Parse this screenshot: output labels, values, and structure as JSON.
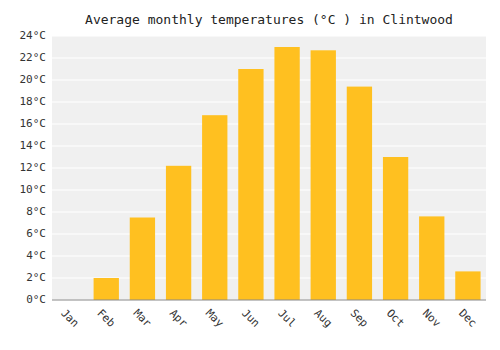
{
  "chart_data": {
    "type": "bar",
    "title": "Average monthly temperatures (°C ) in Clintwood",
    "categories": [
      "Jan",
      "Feb",
      "Mar",
      "Apr",
      "May",
      "Jun",
      "Jul",
      "Aug",
      "Sep",
      "Oct",
      "Nov",
      "Dec"
    ],
    "values": [
      0,
      2,
      7.5,
      12.2,
      16.8,
      21.0,
      23.0,
      22.7,
      19.4,
      13.0,
      7.6,
      2.6
    ],
    "color": "#FFC020",
    "ylim": [
      0,
      24
    ],
    "yticks": [
      {
        "value": 0,
        "label": "0°C"
      },
      {
        "value": 2,
        "label": "2°C"
      },
      {
        "value": 4,
        "label": "4°C"
      },
      {
        "value": 6,
        "label": "6°C"
      },
      {
        "value": 8,
        "label": "8°C"
      },
      {
        "value": 10,
        "label": "10°C"
      },
      {
        "value": 12,
        "label": "12°C"
      },
      {
        "value": 14,
        "label": "14°C"
      },
      {
        "value": 16,
        "label": "16°C"
      },
      {
        "value": 18,
        "label": "18°C"
      },
      {
        "value": 20,
        "label": "20°C"
      },
      {
        "value": 22,
        "label": "22°C"
      },
      {
        "value": 24,
        "label": "24°C"
      }
    ],
    "grid": true
  }
}
